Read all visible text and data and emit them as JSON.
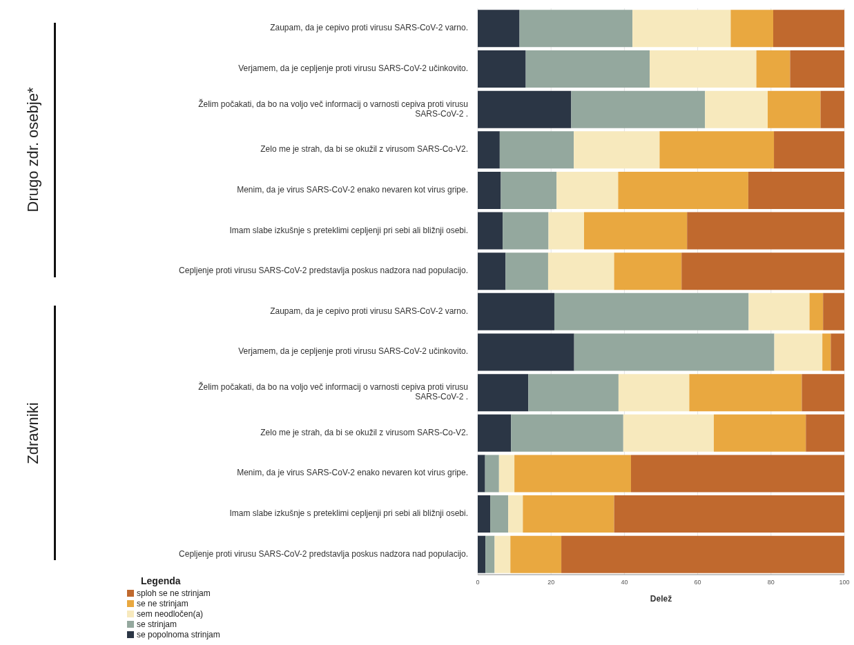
{
  "chart_data": {
    "type": "bar",
    "orientation": "horizontal",
    "stacked": true,
    "categories": [
      "Zaupam, da je cepivo proti virusu SARS-CoV-2 varno.",
      "Verjamem, da je cepljenje proti virusu SARS-CoV-2 učinkovito.",
      "Želim počakati, da bo na voljo več informacij o varnosti cepiva proti virusu SARS-CoV-2 .",
      "Zelo me je strah, da bi se okužil z virusom SARS-Co-V2.",
      "Menim, da je virus SARS-CoV-2 enako nevaren kot virus gripe.",
      "Imam slabe izkušnje s preteklimi cepljenji pri sebi ali bližnji osebi.",
      "Cepljenje proti virusu SARS-CoV-2 predstavlja poskus nadzora nad populacijo.",
      "Zaupam, da je cepivo proti virusu SARS-CoV-2 varno.",
      "Verjamem, da je cepljenje proti virusu SARS-CoV-2 učinkovito.",
      "Želim počakati, da bo na voljo več informacij o varnosti cepiva proti virusu SARS-CoV-2 .",
      "Zelo me je strah, da bi se okužil z virusom SARS-Co-V2.",
      "Menim, da je virus SARS-CoV-2 enako nevaren kot virus gripe.",
      "Imam slabe izkušnje s preteklimi cepljenji pri sebi ali bližnji osebi.",
      "Cepljenje proti virusu SARS-CoV-2 predstavlja poskus nadzora nad populacijo."
    ],
    "series": [
      {
        "name": "se popolnoma strinjam",
        "color": "#2b3645",
        "values": [
          11.4,
          13.1,
          25.5,
          6.0,
          6.3,
          6.8,
          7.6,
          20.9,
          26.3,
          13.8,
          9.1,
          2.0,
          3.4,
          2.1
        ]
      },
      {
        "name": "se strinjam",
        "color": "#94a89e",
        "values": [
          30.8,
          33.8,
          36.5,
          20.2,
          15.2,
          12.5,
          11.6,
          53.0,
          54.6,
          24.6,
          30.6,
          3.8,
          4.9,
          2.5
        ]
      },
      {
        "name": "sem neodločen(a)",
        "color": "#f7e9bd",
        "values": [
          26.8,
          29.1,
          17.1,
          23.4,
          16.8,
          9.7,
          18.0,
          16.6,
          13.1,
          19.3,
          24.7,
          4.2,
          4.0,
          4.3
        ]
      },
      {
        "name": "se ne strinjam",
        "color": "#e9a840",
        "values": [
          11.6,
          9.2,
          14.4,
          31.2,
          35.5,
          28.1,
          18.4,
          3.7,
          2.3,
          30.7,
          25.1,
          31.8,
          24.9,
          13.9
        ]
      },
      {
        "name": "sploh se ne strinjam",
        "color": "#c0692e",
        "values": [
          19.4,
          14.8,
          6.5,
          19.2,
          26.2,
          42.9,
          44.4,
          5.8,
          3.7,
          11.6,
          10.5,
          58.2,
          62.8,
          77.2
        ]
      }
    ],
    "xlabel": "Delež",
    "xlim": [
      0,
      100
    ],
    "xticks": [
      0,
      20,
      40,
      60,
      80,
      100
    ],
    "grid": "x",
    "legend": "bottom left",
    "legend_title": "Legenda",
    "annotations": [
      "Drugo zdr. osebje*",
      "Zdravniki"
    ]
  }
}
